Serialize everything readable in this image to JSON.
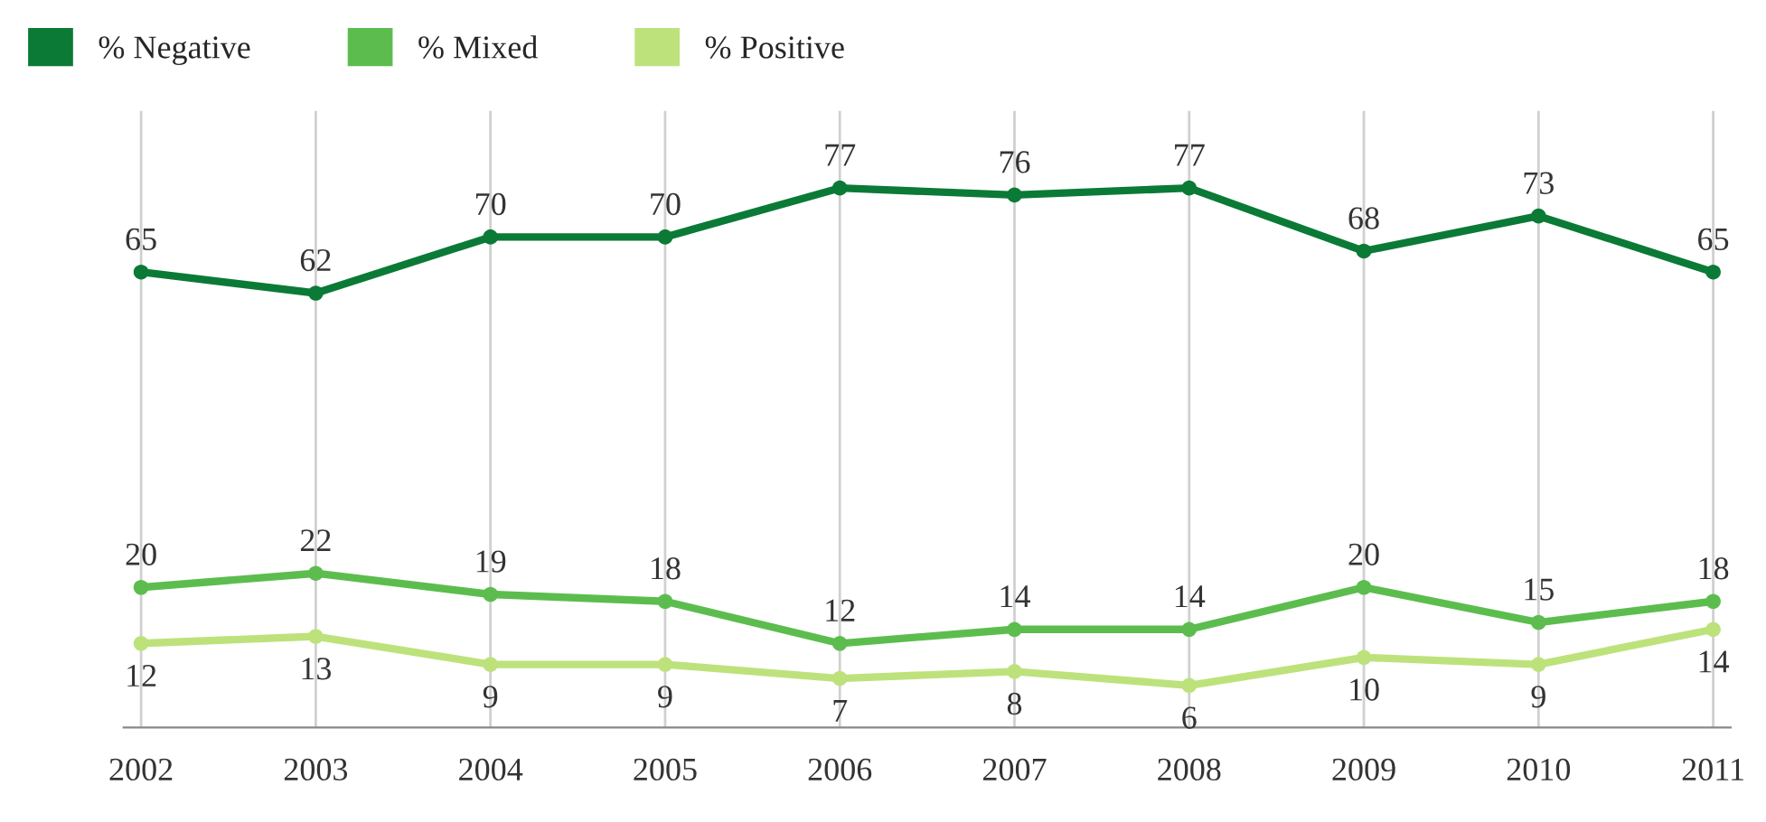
{
  "chart_data": {
    "type": "line",
    "categories": [
      "2002",
      "2003",
      "2004",
      "2005",
      "2006",
      "2007",
      "2008",
      "2009",
      "2010",
      "2011"
    ],
    "series": [
      {
        "name": "% Negative",
        "color": "#0b7a36",
        "values": [
          65,
          62,
          70,
          70,
          77,
          76,
          77,
          68,
          73,
          65
        ]
      },
      {
        "name": "% Mixed",
        "color": "#5cbd4e",
        "values": [
          20,
          22,
          19,
          18,
          12,
          14,
          14,
          20,
          15,
          18
        ]
      },
      {
        "name": "% Positive",
        "color": "#bde27c",
        "values": [
          12,
          13,
          9,
          9,
          7,
          8,
          6,
          10,
          9,
          14
        ]
      }
    ],
    "ylim": [
      0,
      88
    ],
    "data_labels": true,
    "grid": "x",
    "legend": "top left",
    "marker": "circle",
    "line_style": "solid",
    "tick_labels": "x"
  }
}
